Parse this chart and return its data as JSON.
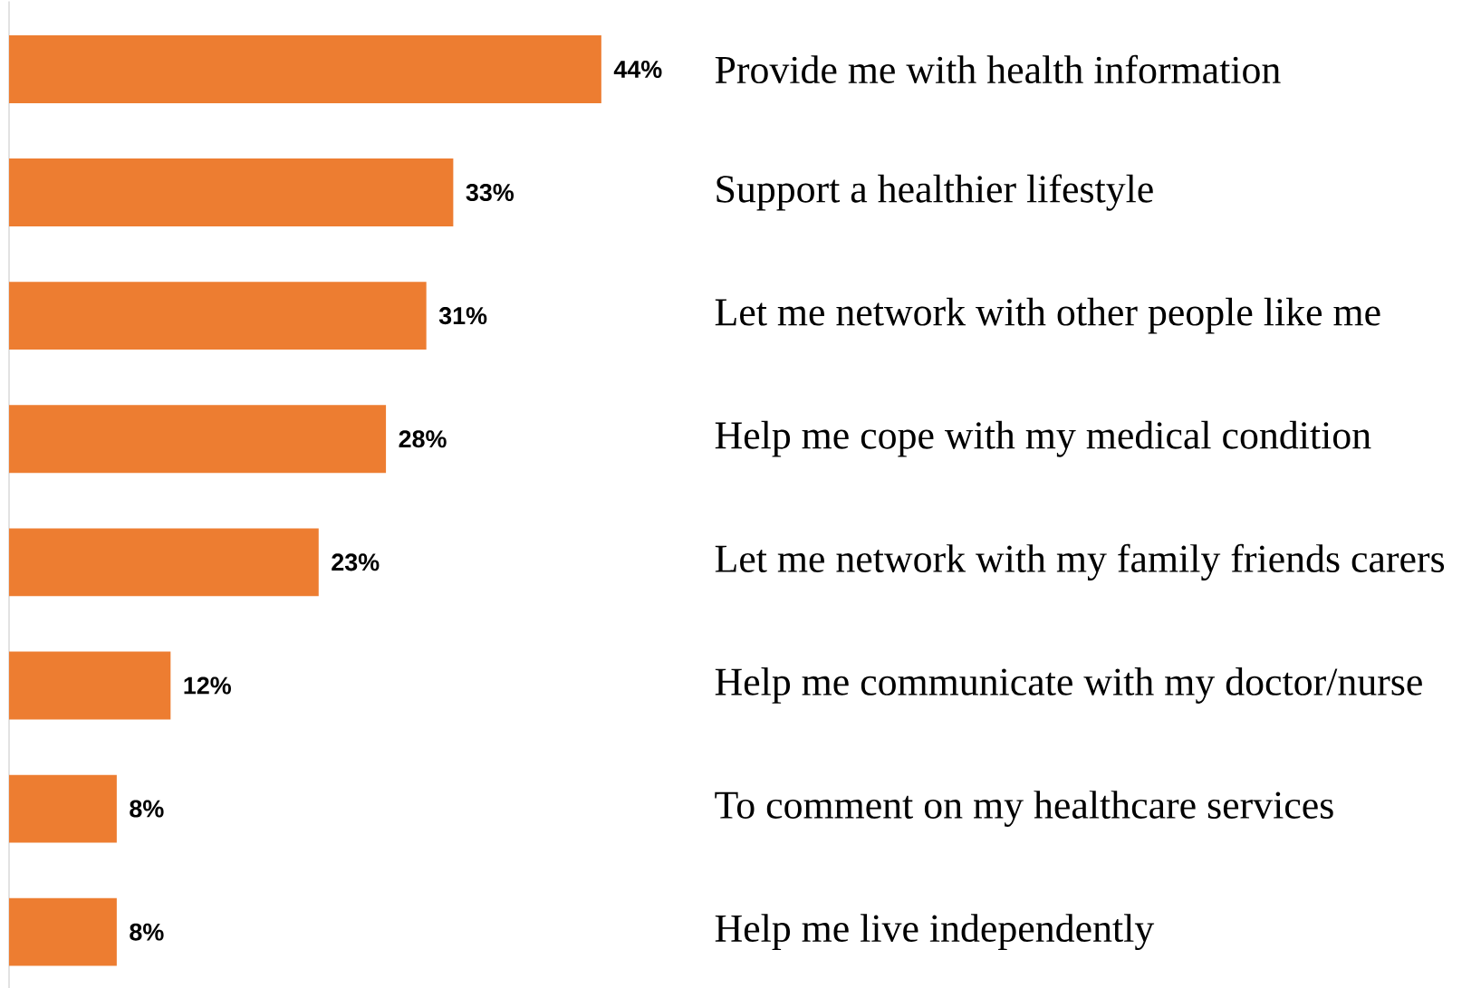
{
  "chart_data": {
    "type": "bar",
    "orientation": "horizontal",
    "categories": [
      "Provide me with health information",
      "Support a healthier lifestyle",
      "Let me network with other people like me",
      "Help me cope with my medical condition",
      "Let me network with my family  friends  carers",
      "Help me communicate with my doctor/nurse",
      "To comment on my healthcare services",
      "Help me live independently"
    ],
    "values": [
      44,
      33,
      31,
      28,
      23,
      12,
      8,
      8
    ],
    "value_labels": [
      "44%",
      "33%",
      "31%",
      "28%",
      "23%",
      "12%",
      "8%",
      "8%"
    ],
    "color": "#ed7d31"
  }
}
